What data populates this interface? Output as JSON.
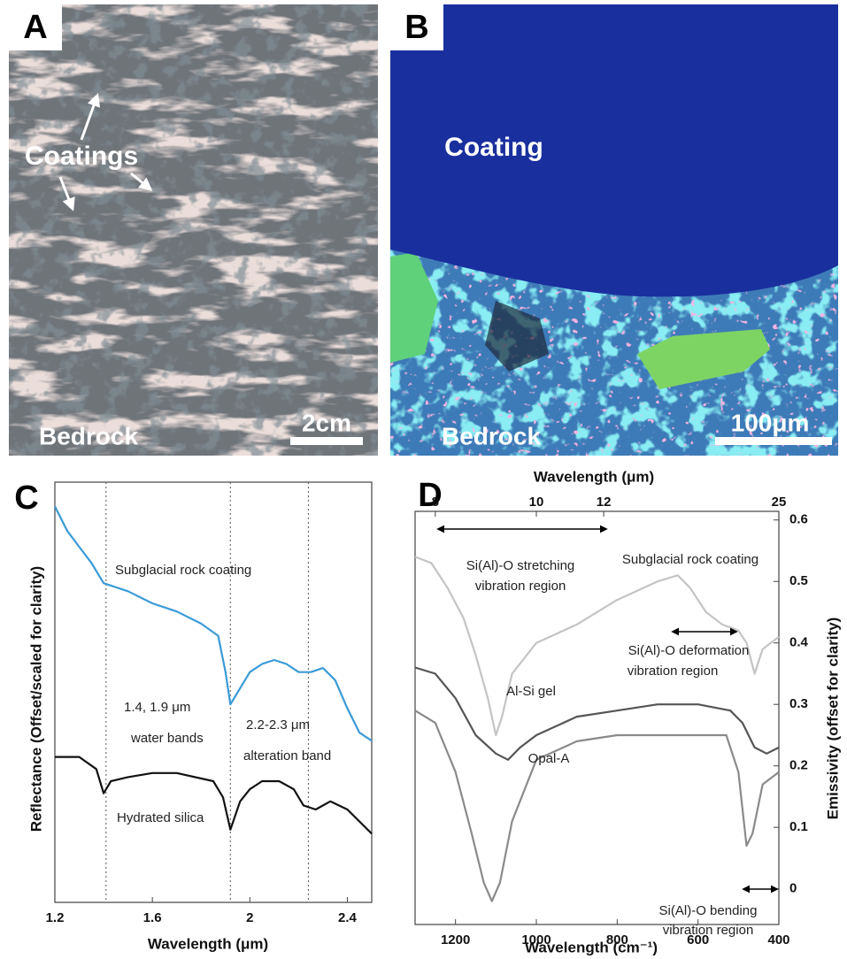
{
  "panels": {
    "A": {
      "label": "A",
      "coatings": "Coatings",
      "bedrock": "Bedrock",
      "scale": "2cm"
    },
    "B": {
      "label": "B",
      "coating": "Coating",
      "bedrock": "Bedrock",
      "scale": "100μm"
    }
  },
  "chart_data": [
    {
      "panel_label": "C",
      "type": "line",
      "xlabel": "Wavelength (μm)",
      "ylabel": "Reflectance (Offset/scaled for clarity)",
      "xlim": [
        1.2,
        2.5
      ],
      "ylim": [
        -0.04,
        1
      ],
      "xticks": [
        1.2,
        1.6,
        2,
        2.4
      ],
      "reference_lines": [
        1.41,
        1.92,
        2.24
      ],
      "annotations": [
        {
          "lines": [
            "1.4, 1.9 μm",
            "water bands"
          ]
        },
        {
          "lines": [
            "2.2-2.3 μm",
            "alteration band"
          ]
        }
      ],
      "series": [
        {
          "name": "Subglacial rock coating",
          "color": "#3a9ad6",
          "x": [
            1.2,
            1.25,
            1.3,
            1.35,
            1.4,
            1.5,
            1.6,
            1.7,
            1.8,
            1.87,
            1.9,
            1.92,
            1.96,
            2.0,
            2.05,
            2.1,
            2.15,
            2.2,
            2.25,
            2.3,
            2.35,
            2.4,
            2.45,
            2.5
          ],
          "values": [
            0.94,
            0.88,
            0.84,
            0.8,
            0.75,
            0.73,
            0.7,
            0.68,
            0.65,
            0.62,
            0.53,
            0.45,
            0.49,
            0.53,
            0.55,
            0.56,
            0.55,
            0.53,
            0.53,
            0.54,
            0.51,
            0.44,
            0.38,
            0.36
          ]
        },
        {
          "name": "Hydrated silica",
          "color": "#111111",
          "x": [
            1.2,
            1.3,
            1.37,
            1.4,
            1.43,
            1.5,
            1.6,
            1.7,
            1.85,
            1.89,
            1.92,
            1.96,
            2.0,
            2.05,
            2.12,
            2.18,
            2.22,
            2.27,
            2.33,
            2.4,
            2.5
          ],
          "values": [
            0.32,
            0.32,
            0.29,
            0.23,
            0.26,
            0.27,
            0.28,
            0.28,
            0.26,
            0.22,
            0.14,
            0.21,
            0.24,
            0.26,
            0.26,
            0.24,
            0.2,
            0.19,
            0.21,
            0.19,
            0.13
          ]
        }
      ]
    },
    {
      "panel_label": "D",
      "type": "line",
      "xlabel": "Wavelength (cm⁻¹)",
      "ylabel": "Emissivity (offset for clarity)",
      "x2label": "Wavelength (μm)",
      "xlim": [
        1300,
        400
      ],
      "ylim": [
        -0.058,
        0.614
      ],
      "xticks": [
        1200,
        1000,
        800,
        600,
        400
      ],
      "x2ticks": [
        8,
        10,
        12,
        25
      ],
      "yticks": [
        0,
        0.1,
        0.2,
        0.3,
        0.4,
        0.5,
        0.6
      ],
      "annotations": [
        {
          "lines": [
            "Si(Al)-O stretching",
            "vibration region"
          ]
        },
        {
          "lines": [
            "Si(Al)-O deformation",
            "vibration region"
          ]
        },
        {
          "lines": [
            "Si(Al)-O bending",
            "vibration region"
          ]
        }
      ],
      "series": [
        {
          "name": "Subglacial rock coating",
          "color": "#c4c4c4",
          "x": [
            1300,
            1260,
            1220,
            1180,
            1150,
            1120,
            1100,
            1085,
            1060,
            1000,
            900,
            800,
            700,
            650,
            620,
            580,
            540,
            500,
            480,
            460,
            440,
            400
          ],
          "values": [
            0.54,
            0.53,
            0.49,
            0.44,
            0.38,
            0.31,
            0.25,
            0.28,
            0.35,
            0.4,
            0.43,
            0.47,
            0.5,
            0.51,
            0.49,
            0.45,
            0.43,
            0.42,
            0.4,
            0.35,
            0.39,
            0.41
          ]
        },
        {
          "name": "Al-Si gel",
          "color": "#555555",
          "x": [
            1300,
            1250,
            1200,
            1150,
            1100,
            1070,
            1040,
            1000,
            900,
            800,
            700,
            600,
            520,
            490,
            460,
            430,
            400
          ],
          "values": [
            0.36,
            0.35,
            0.31,
            0.25,
            0.22,
            0.21,
            0.23,
            0.25,
            0.28,
            0.29,
            0.3,
            0.3,
            0.29,
            0.27,
            0.23,
            0.22,
            0.23
          ]
        },
        {
          "name": "Opal-A",
          "color": "#8a8a8a",
          "x": [
            1300,
            1250,
            1200,
            1160,
            1130,
            1110,
            1090,
            1060,
            1000,
            900,
            800,
            700,
            600,
            530,
            500,
            480,
            465,
            440,
            400
          ],
          "values": [
            0.29,
            0.27,
            0.19,
            0.09,
            0.01,
            -0.02,
            0.01,
            0.11,
            0.21,
            0.24,
            0.25,
            0.25,
            0.25,
            0.25,
            0.19,
            0.07,
            0.09,
            0.17,
            0.19
          ]
        }
      ]
    }
  ]
}
